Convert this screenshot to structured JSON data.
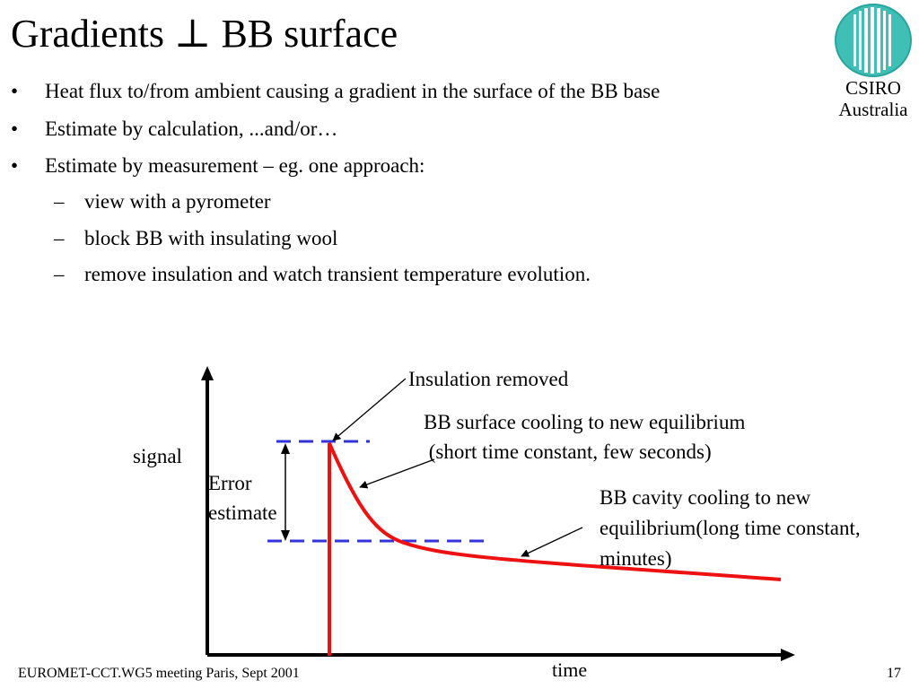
{
  "slide": {
    "title": "Gradients ⊥ BB surface",
    "organization": [
      "CSIRO",
      "Australia"
    ],
    "bullets": [
      {
        "level": 1,
        "marker": "•",
        "text": "Heat flux to/from ambient causing a gradient in the surface of the BB base"
      },
      {
        "level": 1,
        "marker": "•",
        "text": "Estimate by calculation,  ...and/or…"
      },
      {
        "level": 1,
        "marker": "•",
        "text": "Estimate by measurement – eg.  one approach:"
      },
      {
        "level": 2,
        "marker": "–",
        "text": "view with a pyrometer"
      },
      {
        "level": 2,
        "marker": "–",
        "text": "block BB with insulating wool"
      },
      {
        "level": 2,
        "marker": "–",
        "text": "remove insulation and watch transient temperature evolution."
      }
    ],
    "footer": {
      "left": "EUROMET-CCT.WG5 meeting Paris, Sept 2001",
      "page_number": "17"
    }
  },
  "diagram": {
    "x_axis_label": "time",
    "y_axis_label": "signal",
    "error_label": [
      "Error",
      "estimate"
    ],
    "annotations": {
      "insulation_removed": "Insulation removed",
      "surface_cooling": [
        "BB surface cooling to new equilibrium",
        " (short time constant, few seconds)"
      ],
      "cavity_cooling": [
        "BB cavity cooling to new",
        "equilibrium(long time constant,",
        "minutes)"
      ]
    },
    "colors": {
      "curve": "#ee1111",
      "dashed_levels": "#3333dd",
      "axes": "#000000"
    },
    "icons": {
      "logo": "csiro-logo-icon"
    }
  }
}
